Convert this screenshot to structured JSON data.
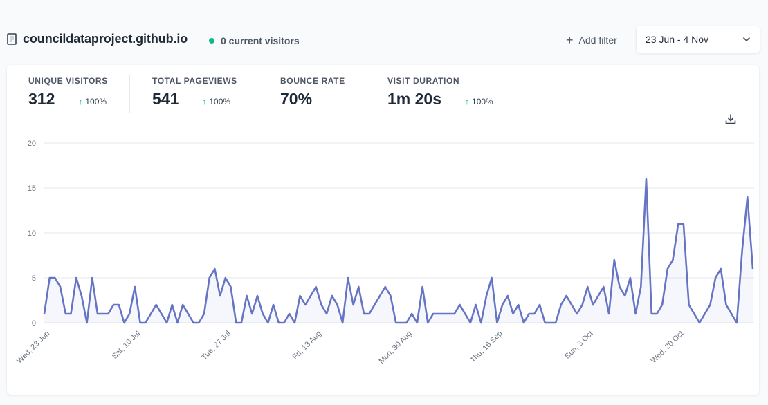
{
  "header": {
    "site_name": "councildataproject.github.io",
    "current_visitors": "0 current visitors",
    "add_filter_label": "Add filter",
    "date_range": "23 Jun - 4 Nov"
  },
  "stats": [
    {
      "label": "UNIQUE VISITORS",
      "value": "312",
      "change": "100%"
    },
    {
      "label": "TOTAL PAGEVIEWS",
      "value": "541",
      "change": "100%"
    },
    {
      "label": "BOUNCE RATE",
      "value": "70%",
      "change": ""
    },
    {
      "label": "VISIT DURATION",
      "value": "1m 20s",
      "change": "100%"
    }
  ],
  "colors": {
    "line": "#6674c4",
    "accent_green": "#10b981"
  },
  "chart_data": {
    "type": "line",
    "ylim": [
      0,
      20
    ],
    "y_ticks": [
      0,
      5,
      10,
      15,
      20
    ],
    "x_tick_labels": [
      "Wed, 23 Jun",
      "Sat, 10 Jul",
      "Tue, 27 Jul",
      "Fri, 13 Aug",
      "Mon, 30 Aug",
      "Thu, 16 Sep",
      "Sun, 3 Oct",
      "Wed, 20 Oct"
    ],
    "grid": true,
    "series": [
      {
        "values": [
          1,
          5,
          5,
          4,
          1,
          1,
          5,
          3,
          0,
          5,
          1,
          1,
          1,
          2,
          2,
          0,
          1,
          4,
          0,
          0,
          1,
          2,
          1,
          0,
          2,
          0,
          2,
          1,
          0,
          0,
          1,
          5,
          6,
          3,
          5,
          4,
          0,
          0,
          3,
          1,
          3,
          1,
          0,
          2,
          0,
          0,
          1,
          0,
          3,
          2,
          3,
          4,
          2,
          1,
          3,
          2,
          0,
          5,
          2,
          4,
          1,
          1,
          2,
          3,
          4,
          3,
          0,
          0,
          0,
          1,
          0,
          4,
          0,
          1,
          1,
          1,
          1,
          1,
          2,
          1,
          0,
          2,
          0,
          3,
          5,
          0,
          2,
          3,
          1,
          2,
          0,
          1,
          1,
          2,
          0,
          0,
          0,
          2,
          3,
          2,
          1,
          2,
          4,
          2,
          3,
          4,
          1,
          7,
          4,
          3,
          5,
          1,
          4,
          16,
          1,
          1,
          2,
          6,
          7,
          11,
          11,
          2,
          1,
          0,
          1,
          2,
          5,
          6,
          2,
          1,
          0,
          8,
          14,
          6
        ]
      }
    ]
  }
}
